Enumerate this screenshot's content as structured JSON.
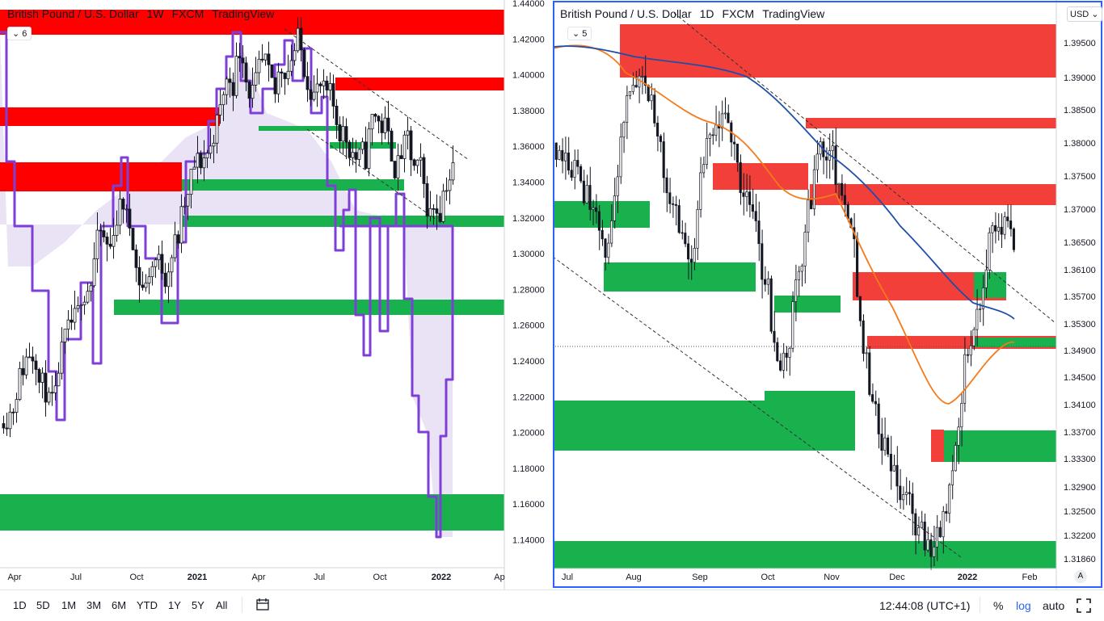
{
  "left_chart": {
    "title_parts": [
      "British Pound / U.S. Dollar",
      "1W",
      "FXCM",
      "TradingView"
    ],
    "badge": "6",
    "price_ticks": [
      "1.44000",
      "1.42000",
      "1.40000",
      "1.38000",
      "1.36000",
      "1.34000",
      "1.32000",
      "1.30000",
      "1.28000",
      "1.26000",
      "1.24000",
      "1.22000",
      "1.20000",
      "1.18000",
      "1.16000",
      "1.14000"
    ],
    "time_labels": [
      "Apr",
      "Jul",
      "Oct",
      "2021",
      "Apr",
      "Jul",
      "Oct",
      "2022",
      "Ap"
    ],
    "colors": {
      "supply": "#ff0000",
      "demand": "#19b04e",
      "line": "#7e3fd6",
      "fill": "#d8ccec"
    }
  },
  "right_chart": {
    "title_parts": [
      "British Pound / U.S. Dollar",
      "1D",
      "FXCM",
      "TradingView"
    ],
    "badge": "5",
    "currency": "USD",
    "price_ticks": [
      "1.39500",
      "1.39000",
      "1.38500",
      "1.38000",
      "1.37500",
      "1.37000",
      "1.36500",
      "1.36100",
      "1.35700",
      "1.35300",
      "1.34900",
      "1.34500",
      "1.34100",
      "1.33700",
      "1.33300",
      "1.32900",
      "1.32500",
      "1.32200",
      "1.31860"
    ],
    "time_labels": [
      "Jul",
      "Aug",
      "Sep",
      "Oct",
      "Nov",
      "Dec",
      "2022",
      "Feb"
    ],
    "auto_label": "A",
    "colors": {
      "supply": "#f23f3a",
      "demand": "#19b04e",
      "ma_fast": "#f57a1a",
      "ma_slow": "#1f4ea8"
    }
  },
  "bottom_bar": {
    "timeframes": [
      "1D",
      "5D",
      "1M",
      "3M",
      "6M",
      "YTD",
      "1Y",
      "5Y",
      "All"
    ],
    "clock": "12:44:08 (UTC+1)",
    "percent": "%",
    "log": "log",
    "auto": "auto"
  }
}
